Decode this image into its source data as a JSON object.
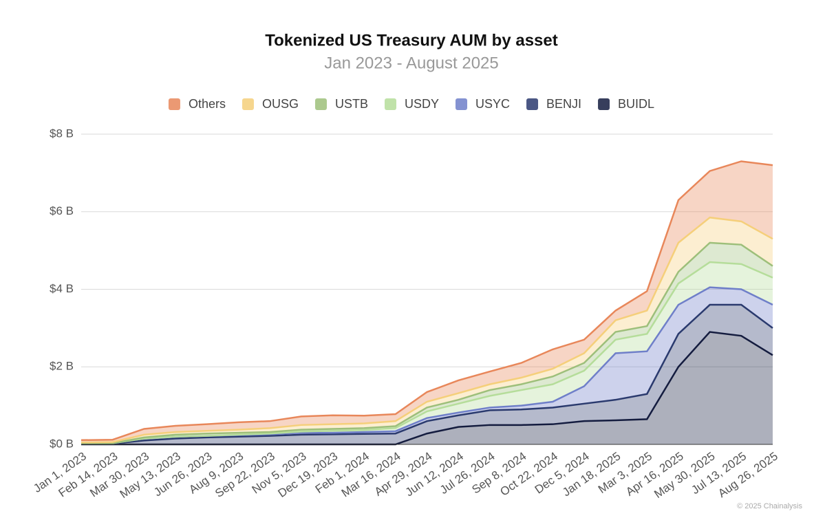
{
  "chart_data": {
    "type": "stacked_area",
    "title": "Tokenized US Treasury AUM by asset",
    "subtitle": "Jan 2023 - August 2025",
    "source": "© 2025 Chainalysis",
    "x": [
      "Jan 1, 2023",
      "Feb 14, 2023",
      "Mar 30, 2023",
      "May 13, 2023",
      "Jun 26, 2023",
      "Aug 9, 2023",
      "Sep 22, 2023",
      "Nov 5, 2023",
      "Dec 19, 2023",
      "Feb 1, 2024",
      "Mar 16, 2024",
      "Apr 29, 2024",
      "Jun 12, 2024",
      "Jul 26, 2024",
      "Sep 8, 2024",
      "Oct 22, 2024",
      "Dec 5, 2024",
      "Jan 18, 2025",
      "Mar 3, 2025",
      "Apr 16, 2025",
      "May 30, 2025",
      "Jul 13, 2025",
      "Aug 26, 2025"
    ],
    "series": [
      {
        "name": "Others",
        "color": "#e8875a",
        "values": [
          0.06,
          0.06,
          0.15,
          0.16,
          0.17,
          0.19,
          0.18,
          0.22,
          0.23,
          0.2,
          0.18,
          0.25,
          0.33,
          0.33,
          0.38,
          0.5,
          0.35,
          0.25,
          0.5,
          1.1,
          1.2,
          1.55,
          1.9
        ]
      },
      {
        "name": "OUSG",
        "color": "#f5cf7a",
        "values": [
          0.02,
          0.03,
          0.07,
          0.07,
          0.07,
          0.08,
          0.1,
          0.12,
          0.12,
          0.12,
          0.13,
          0.15,
          0.17,
          0.15,
          0.17,
          0.2,
          0.25,
          0.3,
          0.4,
          0.75,
          0.65,
          0.6,
          0.7
        ]
      },
      {
        "name": "USTB",
        "color": "#9dbf7a",
        "values": [
          0,
          0,
          0.03,
          0.05,
          0.06,
          0.05,
          0.04,
          0.05,
          0.05,
          0.05,
          0.05,
          0.1,
          0.1,
          0.15,
          0.15,
          0.2,
          0.2,
          0.2,
          0.2,
          0.3,
          0.5,
          0.5,
          0.3
        ]
      },
      {
        "name": "USDY",
        "color": "#b5dd9a",
        "values": [
          0,
          0,
          0,
          0,
          0,
          0.01,
          0.02,
          0.03,
          0.05,
          0.05,
          0.08,
          0.17,
          0.23,
          0.3,
          0.4,
          0.45,
          0.4,
          0.35,
          0.45,
          0.55,
          0.65,
          0.65,
          0.7
        ]
      },
      {
        "name": "USYC",
        "color": "#6f7fc9",
        "values": [
          0.01,
          0.01,
          0.05,
          0.05,
          0.04,
          0.04,
          0.04,
          0.05,
          0.04,
          0.05,
          0.06,
          0.08,
          0.07,
          0.07,
          0.1,
          0.15,
          0.45,
          1.2,
          1.1,
          0.75,
          0.45,
          0.4,
          0.6
        ]
      },
      {
        "name": "BENJI",
        "color": "#2a3a6e",
        "values": [
          0.02,
          0.02,
          0.1,
          0.15,
          0.18,
          0.2,
          0.22,
          0.25,
          0.26,
          0.27,
          0.28,
          0.32,
          0.3,
          0.38,
          0.4,
          0.43,
          0.45,
          0.53,
          0.65,
          0.85,
          0.7,
          0.8,
          0.7
        ]
      },
      {
        "name": "BUIDL",
        "color": "#141c3f",
        "values": [
          0,
          0,
          0,
          0,
          0,
          0,
          0,
          0,
          0,
          0,
          0,
          0.28,
          0.45,
          0.5,
          0.5,
          0.52,
          0.6,
          0.62,
          0.65,
          2.0,
          2.9,
          2.8,
          2.3
        ]
      }
    ],
    "ylim": [
      0,
      8
    ],
    "yticks": [
      {
        "value": 0,
        "label": "$0 B"
      },
      {
        "value": 2,
        "label": "$2 B"
      },
      {
        "value": 4,
        "label": "$4 B"
      },
      {
        "value": 6,
        "label": "$6 B"
      },
      {
        "value": 8,
        "label": "$8 B"
      }
    ],
    "grid": true,
    "legend": "top"
  }
}
